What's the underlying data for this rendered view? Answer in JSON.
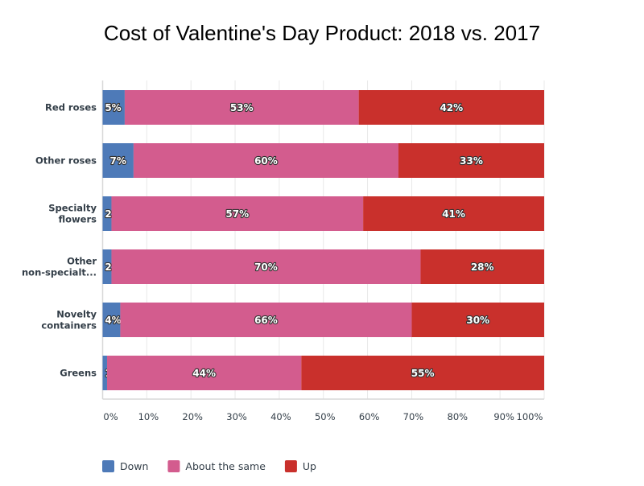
{
  "chart_data": {
    "type": "bar",
    "orientation": "horizontal",
    "stacked": true,
    "title": "Cost of Valentine's Day Product: 2018 vs. 2017",
    "categories": [
      "Red roses",
      "Other roses",
      "Specialty flowers",
      "Other non-speciality...",
      "Novelty containers",
      "Greens"
    ],
    "category_display": [
      [
        "Red roses"
      ],
      [
        "Other roses"
      ],
      [
        "Specialty",
        "flowers"
      ],
      [
        "Other",
        "non-specialt..."
      ],
      [
        "Novelty",
        "containers"
      ],
      [
        "Greens"
      ]
    ],
    "series": [
      {
        "name": "Down",
        "color": "#4e7ab8",
        "values": [
          5,
          7,
          2,
          2,
          4,
          1
        ]
      },
      {
        "name": "About the same",
        "color": "#d35c8e",
        "values": [
          53,
          60,
          57,
          70,
          66,
          44
        ]
      },
      {
        "name": "Up",
        "color": "#c9302c",
        "values": [
          42,
          33,
          41,
          28,
          30,
          55
        ]
      }
    ],
    "xlim": [
      0,
      100
    ],
    "x_ticks": [
      "0%",
      "10%",
      "20%",
      "30%",
      "40%",
      "50%",
      "60%",
      "70%",
      "80%",
      "90%",
      "100%"
    ],
    "grid": true,
    "legend_position": "bottom-left"
  }
}
